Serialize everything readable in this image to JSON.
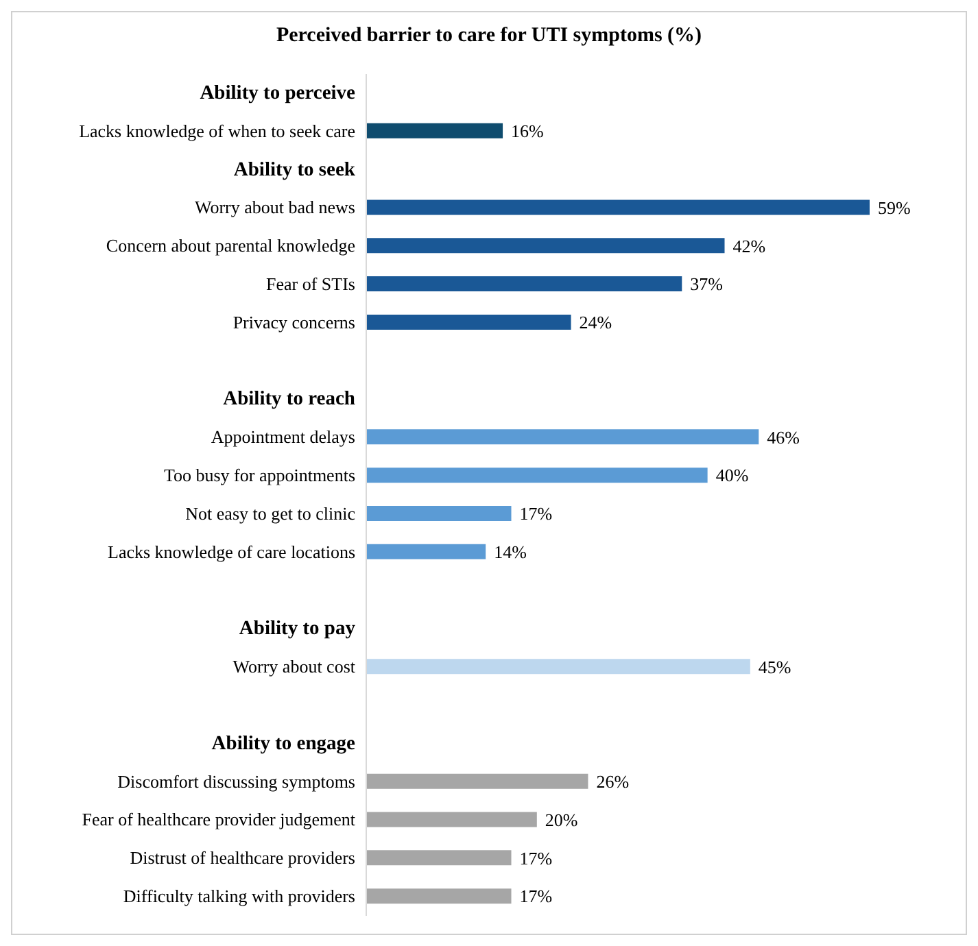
{
  "chart_data": {
    "type": "bar",
    "orientation": "horizontal",
    "title": "Perceived barrier to care for UTI symptoms (%)",
    "categories": [
      "Ability to perceive",
      "Lacks knowledge of when to seek care",
      "Ability to seek",
      "Worry about bad news",
      "Concern about parental knowledge",
      "Fear of STIs",
      "Privacy concerns",
      null,
      "Ability to reach",
      "Appointment delays",
      "Too busy for appointments",
      "Not easy to get to clinic",
      "Lacks knowledge of care locations",
      null,
      "Ability to pay",
      "Worry about cost",
      null,
      "Ability to engage",
      "Discomfort discussing symptoms",
      "Fear of healthcare provider judgement",
      "Distrust of healthcare providers",
      "Difficulty talking with providers"
    ],
    "values": [
      null,
      16,
      null,
      59,
      42,
      37,
      24,
      null,
      null,
      46,
      40,
      17,
      14,
      null,
      null,
      45,
      null,
      null,
      26,
      20,
      17,
      17
    ],
    "colors": [
      null,
      "#0f4c6e",
      null,
      "#1a5896",
      "#1a5896",
      "#1a5896",
      "#1a5896",
      null,
      null,
      "#5b9bd5",
      "#5b9bd5",
      "#5b9bd5",
      "#5b9bd5",
      null,
      null,
      "#bdd7ee",
      null,
      null,
      "#a6a6a6",
      "#a6a6a6",
      "#a6a6a6",
      "#a6a6a6"
    ],
    "value_labels": [
      null,
      "16%",
      null,
      "59%",
      "42%",
      "37%",
      "24%",
      null,
      null,
      "46%",
      "40%",
      "17%",
      "14%",
      null,
      null,
      "45%",
      null,
      null,
      "26%",
      "20%",
      "17%",
      "17%"
    ],
    "tick_labels": "y"
  }
}
